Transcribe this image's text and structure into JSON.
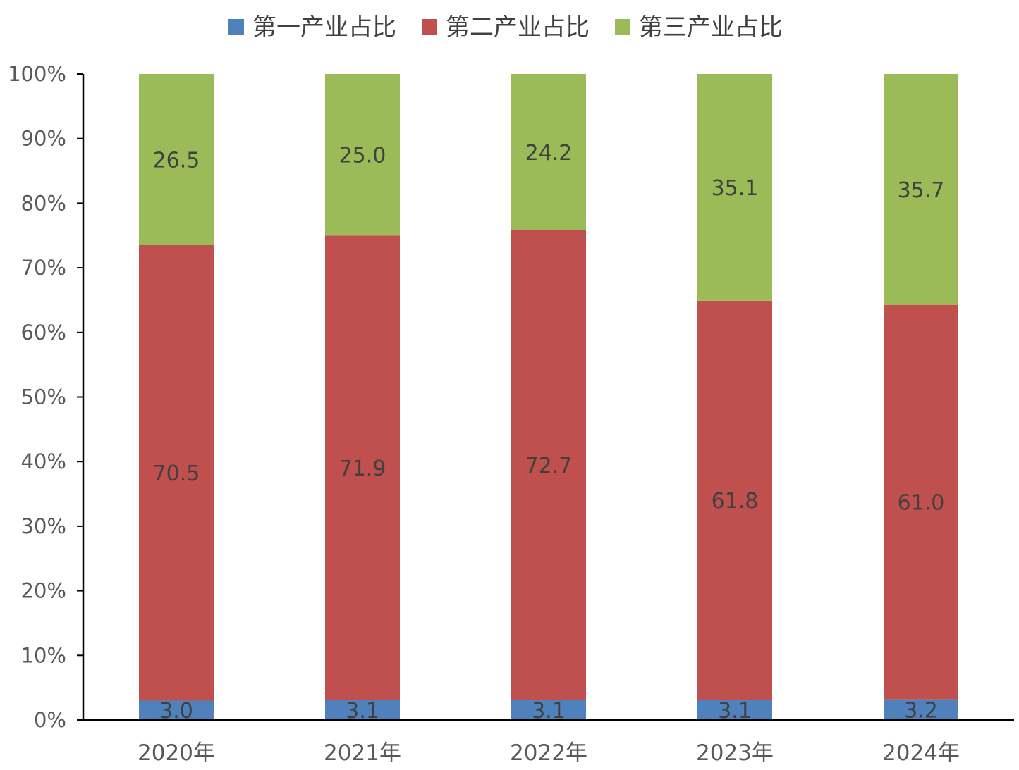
{
  "chart_data": {
    "type": "bar",
    "stacked": true,
    "percent_stacked": true,
    "categories": [
      "2020年",
      "2021年",
      "2022年",
      "2023年",
      "2024年"
    ],
    "series": [
      {
        "name": "第一产业占比",
        "color": "#4f81bd",
        "values": [
          3.0,
          3.1,
          3.1,
          3.1,
          3.2
        ],
        "labels": [
          "3.0",
          "3.1",
          "3.1",
          "3.1",
          "3.2"
        ]
      },
      {
        "name": "第二产业占比",
        "color": "#c0504d",
        "values": [
          70.5,
          71.9,
          72.7,
          61.8,
          61.0
        ],
        "labels": [
          "70.5",
          "71.9",
          "72.7",
          "61.8",
          "61.0"
        ]
      },
      {
        "name": "第三产业占比",
        "color": "#9bbb59",
        "values": [
          26.5,
          25.0,
          24.2,
          35.1,
          35.7
        ],
        "labels": [
          "26.5",
          "25.0",
          "24.2",
          "35.1",
          "35.7"
        ]
      }
    ],
    "ylim": [
      0,
      100
    ],
    "yticks": [
      "0%",
      "10%",
      "20%",
      "30%",
      "40%",
      "50%",
      "60%",
      "70%",
      "80%",
      "90%",
      "100%"
    ],
    "legend_position": "top",
    "grid": false,
    "title": "",
    "xlabel": "",
    "ylabel": ""
  }
}
